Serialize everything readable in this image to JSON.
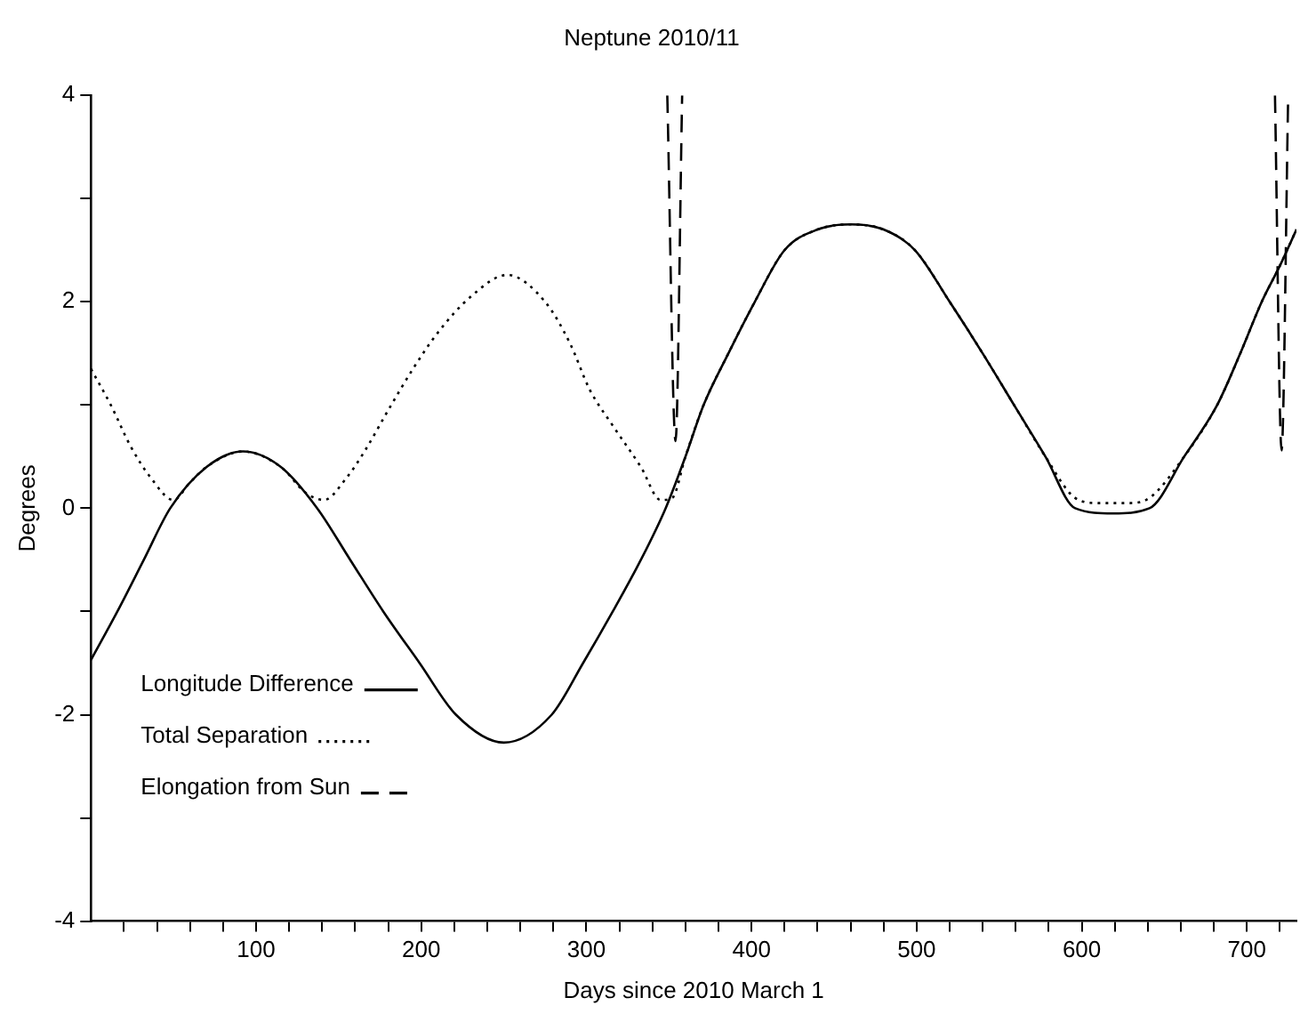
{
  "chart_data": {
    "type": "line",
    "title": "Neptune 2010/11",
    "xlabel": "Days since 2010 March 1",
    "ylabel": "Degrees",
    "xlim": [
      0,
      730
    ],
    "ylim": [
      -4,
      4
    ],
    "xticks": [
      {
        "value": 20,
        "label": null
      },
      {
        "value": 40,
        "label": null
      },
      {
        "value": 60,
        "label": null
      },
      {
        "value": 80,
        "label": null
      },
      100,
      {
        "value": 120,
        "label": null
      },
      {
        "value": 140,
        "label": null
      },
      {
        "value": 160,
        "label": null
      },
      {
        "value": 180,
        "label": null
      },
      200,
      {
        "value": 220,
        "label": null
      },
      {
        "value": 240,
        "label": null
      },
      {
        "value": 260,
        "label": null
      },
      {
        "value": 280,
        "label": null
      },
      300,
      {
        "value": 320,
        "label": null
      },
      {
        "value": 340,
        "label": null
      },
      {
        "value": 360,
        "label": null
      },
      {
        "value": 380,
        "label": null
      },
      400,
      {
        "value": 420,
        "label": null
      },
      {
        "value": 440,
        "label": null
      },
      {
        "value": 460,
        "label": null
      },
      {
        "value": 480,
        "label": null
      },
      500,
      {
        "value": 520,
        "label": null
      },
      {
        "value": 540,
        "label": null
      },
      {
        "value": 560,
        "label": null
      },
      {
        "value": 580,
        "label": null
      },
      600,
      {
        "value": 620,
        "label": null
      },
      {
        "value": 640,
        "label": null
      },
      {
        "value": 660,
        "label": null
      },
      {
        "value": 680,
        "label": null
      },
      700,
      {
        "value": 720,
        "label": null
      }
    ],
    "yticks": [
      -4,
      {
        "value": -3,
        "label": null
      },
      -2,
      {
        "value": -1,
        "label": null
      },
      0,
      {
        "value": 1,
        "label": null
      },
      2,
      {
        "value": 3,
        "label": null
      },
      4
    ],
    "grid": false,
    "legend": "bottom left",
    "marker": "none",
    "series": [
      {
        "name": "Longitude Difference",
        "color": "#000000",
        "line_style": "solid",
        "x": [
          0,
          16,
          32,
          48,
          70,
          92,
          115,
          137,
          157,
          177,
          199,
          221,
          250,
          279,
          298,
          316,
          333,
          348,
          360,
          371,
          386,
          402,
          420,
          440,
          460,
          480,
          499,
          520,
          540,
          559,
          578,
          596,
          619,
          641,
          662,
          682,
          696,
          709,
          720,
          730
        ],
        "values": [
          -1.47,
          -1,
          -0.5,
          0,
          0.4,
          0.55,
          0.4,
          0,
          -0.5,
          -1,
          -1.5,
          -2,
          -2.27,
          -2,
          -1.5,
          -1,
          -0.5,
          0,
          0.5,
          1,
          1.5,
          2,
          2.5,
          2.7,
          2.75,
          2.7,
          2.5,
          2,
          1.5,
          1,
          0.5,
          0,
          -0.05,
          0,
          0.5,
          1,
          1.5,
          2,
          2.35,
          2.7
        ]
      },
      {
        "name": "Total Separation",
        "color": "#000000",
        "line_style": "dotted",
        "x": [
          0,
          12,
          24,
          36,
          50,
          60,
          70,
          92,
          115,
          130,
          141,
          155,
          166,
          180,
          195,
          210,
          230,
          252,
          275,
          290,
          302,
          316,
          333,
          345,
          352,
          360,
          371,
          386,
          402,
          420,
          440,
          460,
          480,
          499,
          520,
          540,
          559,
          578,
          596,
          610,
          628,
          641,
          662,
          682,
          696,
          709,
          720,
          730
        ],
        "values": [
          1.35,
          1,
          0.6,
          0.3,
          0.08,
          0.25,
          0.4,
          0.55,
          0.4,
          0.15,
          0.08,
          0.3,
          0.56,
          0.95,
          1.35,
          1.7,
          2.05,
          2.26,
          2,
          1.6,
          1.15,
          0.8,
          0.4,
          0.08,
          0.1,
          0.5,
          1,
          1.5,
          2,
          2.5,
          2.7,
          2.75,
          2.7,
          2.5,
          2,
          1.5,
          1,
          0.5,
          0.1,
          0.05,
          0.05,
          0.1,
          0.5,
          1,
          1.5,
          2,
          2.35,
          2.7
        ]
      },
      {
        "name": "Elongation from Sun",
        "color": "#000000",
        "line_style": "dashed",
        "x": [
          349,
          354,
          358,
          359,
          717,
          721,
          725
        ],
        "values": [
          4,
          0.65,
          4,
          null,
          4,
          0.56,
          4
        ]
      }
    ]
  }
}
